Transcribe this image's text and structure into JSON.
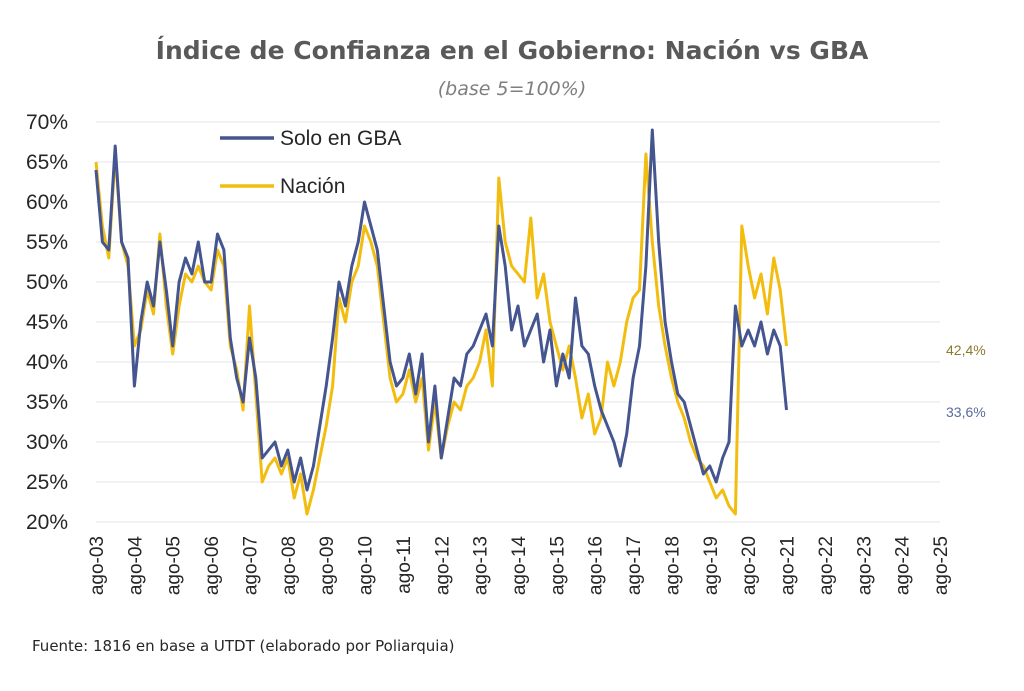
{
  "title": "Índice de Confianza en el Gobierno: Nación vs GBA",
  "subtitle": "(base 5=100%)",
  "source": "Fuente: 1816 en base a UTDT (elaborado por Poliarquia)",
  "colors": {
    "gba": "#44558f",
    "nacion": "#f2bd0f",
    "nacion_label": "#8c7a2a",
    "gba_label": "#5a6a9c",
    "grid": "#e4e4e4"
  },
  "chart_data": {
    "type": "line",
    "title": "Índice de Confianza en el Gobierno: Nación vs GBA",
    "subtitle": "(base 5=100%)",
    "xlabel": "",
    "ylabel": "",
    "ylim": [
      20,
      70
    ],
    "y_unit": "%",
    "yticks": [
      "20%",
      "25%",
      "30%",
      "35%",
      "40%",
      "45%",
      "50%",
      "55%",
      "60%",
      "65%",
      "70%"
    ],
    "xticks": [
      "ago-03",
      "ago-04",
      "ago-05",
      "ago-06",
      "ago-07",
      "ago-08",
      "ago-09",
      "ago-10",
      "ago-11",
      "ago-12",
      "ago-13",
      "ago-14",
      "ago-15",
      "ago-16",
      "ago-17",
      "ago-18",
      "ago-19",
      "ago-20",
      "ago-21",
      "ago-22",
      "ago-23",
      "ago-24",
      "ago-25"
    ],
    "x_range": [
      "2003-08",
      "2025-08"
    ],
    "grid": true,
    "legend_position": "top-left",
    "series": [
      {
        "name": "Solo en GBA",
        "end_label": "33,6%",
        "points": [
          [
            "2003-08",
            64
          ],
          [
            "2003-10",
            55
          ],
          [
            "2003-12",
            54
          ],
          [
            "2004-02",
            67
          ],
          [
            "2004-04",
            55
          ],
          [
            "2004-06",
            53
          ],
          [
            "2004-08",
            37
          ],
          [
            "2004-10",
            45
          ],
          [
            "2004-12",
            50
          ],
          [
            "2005-02",
            47
          ],
          [
            "2005-04",
            55
          ],
          [
            "2005-06",
            49
          ],
          [
            "2005-08",
            42
          ],
          [
            "2005-10",
            50
          ],
          [
            "2005-12",
            53
          ],
          [
            "2006-02",
            51
          ],
          [
            "2006-04",
            55
          ],
          [
            "2006-06",
            50
          ],
          [
            "2006-08",
            50
          ],
          [
            "2006-10",
            56
          ],
          [
            "2006-12",
            54
          ],
          [
            "2007-02",
            43
          ],
          [
            "2007-04",
            38
          ],
          [
            "2007-06",
            35
          ],
          [
            "2007-08",
            43
          ],
          [
            "2007-10",
            38
          ],
          [
            "2007-12",
            28
          ],
          [
            "2008-02",
            29
          ],
          [
            "2008-04",
            30
          ],
          [
            "2008-06",
            27
          ],
          [
            "2008-08",
            29
          ],
          [
            "2008-10",
            25
          ],
          [
            "2008-12",
            28
          ],
          [
            "2009-02",
            24
          ],
          [
            "2009-04",
            27
          ],
          [
            "2009-06",
            32
          ],
          [
            "2009-08",
            37
          ],
          [
            "2009-10",
            43
          ],
          [
            "2009-12",
            50
          ],
          [
            "2010-02",
            47
          ],
          [
            "2010-04",
            52
          ],
          [
            "2010-06",
            55
          ],
          [
            "2010-08",
            60
          ],
          [
            "2010-10",
            57
          ],
          [
            "2010-12",
            54
          ],
          [
            "2011-02",
            47
          ],
          [
            "2011-04",
            40
          ],
          [
            "2011-06",
            37
          ],
          [
            "2011-08",
            38
          ],
          [
            "2011-10",
            41
          ],
          [
            "2011-12",
            36
          ],
          [
            "2012-02",
            41
          ],
          [
            "2012-04",
            30
          ],
          [
            "2012-06",
            37
          ],
          [
            "2012-08",
            28
          ],
          [
            "2012-10",
            33
          ],
          [
            "2012-12",
            38
          ],
          [
            "2013-02",
            37
          ],
          [
            "2013-04",
            41
          ],
          [
            "2013-06",
            42
          ],
          [
            "2013-08",
            44
          ],
          [
            "2013-10",
            46
          ],
          [
            "2013-12",
            42
          ],
          [
            "2014-02",
            57
          ],
          [
            "2014-04",
            52
          ],
          [
            "2014-06",
            44
          ],
          [
            "2014-08",
            47
          ],
          [
            "2014-10",
            42
          ],
          [
            "2014-12",
            44
          ],
          [
            "2015-02",
            46
          ],
          [
            "2015-04",
            40
          ],
          [
            "2015-06",
            44
          ],
          [
            "2015-08",
            37
          ],
          [
            "2015-10",
            41
          ],
          [
            "2015-12",
            38
          ],
          [
            "2016-02",
            48
          ],
          [
            "2016-04",
            42
          ],
          [
            "2016-06",
            41
          ],
          [
            "2016-08",
            37
          ],
          [
            "2016-10",
            34
          ],
          [
            "2016-12",
            32
          ],
          [
            "2017-02",
            30
          ],
          [
            "2017-04",
            27
          ],
          [
            "2017-06",
            31
          ],
          [
            "2017-08",
            38
          ],
          [
            "2017-10",
            42
          ],
          [
            "2017-12",
            52
          ],
          [
            "2018-02",
            69
          ],
          [
            "2018-04",
            55
          ],
          [
            "2018-06",
            45
          ],
          [
            "2018-08",
            40
          ],
          [
            "2018-10",
            36
          ],
          [
            "2018-12",
            35
          ],
          [
            "2019-02",
            32
          ],
          [
            "2019-04",
            29
          ],
          [
            "2019-06",
            26
          ],
          [
            "2019-08",
            27
          ],
          [
            "2019-10",
            25
          ],
          [
            "2019-12",
            28
          ],
          [
            "2020-02",
            30
          ],
          [
            "2020-04",
            47
          ],
          [
            "2020-06",
            42
          ],
          [
            "2020-08",
            44
          ],
          [
            "2020-10",
            42
          ],
          [
            "2020-12",
            45
          ],
          [
            "2021-02",
            41
          ],
          [
            "2021-04",
            44
          ],
          [
            "2021-06",
            42
          ],
          [
            "2021-08",
            34
          ]
        ]
      },
      {
        "name": "Nación",
        "end_label": "42,4%",
        "points": [
          [
            "2003-08",
            65
          ],
          [
            "2003-10",
            57
          ],
          [
            "2003-12",
            53
          ],
          [
            "2004-02",
            66
          ],
          [
            "2004-04",
            55
          ],
          [
            "2004-06",
            52
          ],
          [
            "2004-08",
            42
          ],
          [
            "2004-10",
            44
          ],
          [
            "2004-12",
            49
          ],
          [
            "2005-02",
            46
          ],
          [
            "2005-04",
            56
          ],
          [
            "2005-06",
            47
          ],
          [
            "2005-08",
            41
          ],
          [
            "2005-10",
            47
          ],
          [
            "2005-12",
            51
          ],
          [
            "2006-02",
            50
          ],
          [
            "2006-04",
            52
          ],
          [
            "2006-06",
            50
          ],
          [
            "2006-08",
            49
          ],
          [
            "2006-10",
            54
          ],
          [
            "2006-12",
            52
          ],
          [
            "2007-02",
            42
          ],
          [
            "2007-04",
            39
          ],
          [
            "2007-06",
            34
          ],
          [
            "2007-08",
            47
          ],
          [
            "2007-10",
            36
          ],
          [
            "2007-12",
            25
          ],
          [
            "2008-02",
            27
          ],
          [
            "2008-04",
            28
          ],
          [
            "2008-06",
            26
          ],
          [
            "2008-08",
            28
          ],
          [
            "2008-10",
            23
          ],
          [
            "2008-12",
            26
          ],
          [
            "2009-02",
            21
          ],
          [
            "2009-04",
            24
          ],
          [
            "2009-06",
            28
          ],
          [
            "2009-08",
            32
          ],
          [
            "2009-10",
            37
          ],
          [
            "2009-12",
            48
          ],
          [
            "2010-02",
            45
          ],
          [
            "2010-04",
            50
          ],
          [
            "2010-06",
            52
          ],
          [
            "2010-08",
            57
          ],
          [
            "2010-10",
            55
          ],
          [
            "2010-12",
            52
          ],
          [
            "2011-02",
            45
          ],
          [
            "2011-04",
            38
          ],
          [
            "2011-06",
            35
          ],
          [
            "2011-08",
            36
          ],
          [
            "2011-10",
            39
          ],
          [
            "2011-12",
            35
          ],
          [
            "2012-02",
            38
          ],
          [
            "2012-04",
            29
          ],
          [
            "2012-06",
            35
          ],
          [
            "2012-08",
            28
          ],
          [
            "2012-10",
            32
          ],
          [
            "2012-12",
            35
          ],
          [
            "2013-02",
            34
          ],
          [
            "2013-04",
            37
          ],
          [
            "2013-06",
            38
          ],
          [
            "2013-08",
            40
          ],
          [
            "2013-10",
            44
          ],
          [
            "2013-12",
            37
          ],
          [
            "2014-02",
            63
          ],
          [
            "2014-04",
            55
          ],
          [
            "2014-06",
            52
          ],
          [
            "2014-08",
            51
          ],
          [
            "2014-10",
            50
          ],
          [
            "2014-12",
            58
          ],
          [
            "2015-02",
            48
          ],
          [
            "2015-04",
            51
          ],
          [
            "2015-06",
            45
          ],
          [
            "2015-08",
            42
          ],
          [
            "2015-10",
            39
          ],
          [
            "2015-12",
            42
          ],
          [
            "2016-02",
            38
          ],
          [
            "2016-04",
            33
          ],
          [
            "2016-06",
            36
          ],
          [
            "2016-08",
            31
          ],
          [
            "2016-10",
            33
          ],
          [
            "2016-12",
            40
          ],
          [
            "2017-02",
            37
          ],
          [
            "2017-04",
            40
          ],
          [
            "2017-06",
            45
          ],
          [
            "2017-08",
            48
          ],
          [
            "2017-10",
            49
          ],
          [
            "2017-12",
            66
          ],
          [
            "2018-02",
            55
          ],
          [
            "2018-04",
            47
          ],
          [
            "2018-06",
            42
          ],
          [
            "2018-08",
            38
          ],
          [
            "2018-10",
            35
          ],
          [
            "2018-12",
            33
          ],
          [
            "2019-02",
            30
          ],
          [
            "2019-04",
            28
          ],
          [
            "2019-06",
            27
          ],
          [
            "2019-08",
            25
          ],
          [
            "2019-10",
            23
          ],
          [
            "2019-12",
            24
          ],
          [
            "2020-02",
            22
          ],
          [
            "2020-04",
            21
          ],
          [
            "2020-06",
            57
          ],
          [
            "2020-08",
            52
          ],
          [
            "2020-10",
            48
          ],
          [
            "2020-12",
            51
          ],
          [
            "2021-02",
            46
          ],
          [
            "2021-04",
            53
          ],
          [
            "2021-06",
            49
          ],
          [
            "2021-08",
            42
          ]
        ]
      }
    ]
  }
}
